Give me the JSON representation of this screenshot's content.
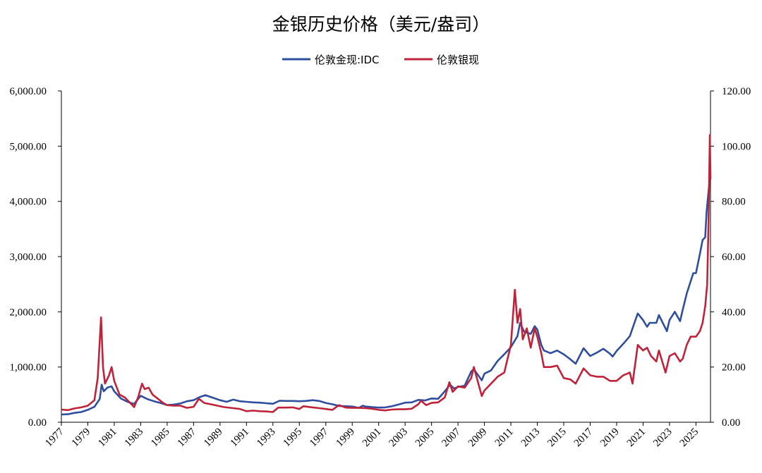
{
  "chart_data": {
    "type": "line",
    "title": "金银历史价格（美元/盎司）",
    "legend_placement": "top-center",
    "grid": false,
    "x_range": [
      1977,
      2026.1
    ],
    "x_ticks": [
      "1977",
      "1979",
      "1981",
      "1983",
      "1985",
      "1987",
      "1989",
      "1991",
      "1993",
      "1995",
      "1997",
      "1999",
      "2001",
      "2003",
      "2005",
      "2007",
      "2009",
      "2011",
      "2013",
      "2015",
      "2017",
      "2019",
      "2021",
      "2023",
      "2025"
    ],
    "y_left": {
      "range": [
        0,
        6000
      ],
      "ticks": [
        "0.00",
        "1,000.00",
        "2,000.00",
        "3,000.00",
        "4,000.00",
        "5,000.00",
        "6,000.00"
      ]
    },
    "y_right": {
      "range": [
        0,
        120
      ],
      "ticks": [
        "0.00",
        "20.00",
        "40.00",
        "60.00",
        "80.00",
        "100.00",
        "120.00"
      ]
    },
    "series": [
      {
        "name": "伦敦金现:IDC",
        "axis": "left",
        "color": "#2f4e9e",
        "points": [
          [
            1977.0,
            140
          ],
          [
            1977.5,
            145
          ],
          [
            1978.0,
            170
          ],
          [
            1978.5,
            185
          ],
          [
            1979.0,
            225
          ],
          [
            1979.5,
            280
          ],
          [
            1979.9,
            420
          ],
          [
            1980.05,
            680
          ],
          [
            1980.2,
            560
          ],
          [
            1980.5,
            630
          ],
          [
            1980.8,
            650
          ],
          [
            1981.0,
            560
          ],
          [
            1981.5,
            430
          ],
          [
            1982.0,
            370
          ],
          [
            1982.5,
            330
          ],
          [
            1983.0,
            480
          ],
          [
            1983.5,
            420
          ],
          [
            1984.0,
            380
          ],
          [
            1984.5,
            350
          ],
          [
            1985.0,
            310
          ],
          [
            1985.5,
            320
          ],
          [
            1986.0,
            340
          ],
          [
            1986.5,
            380
          ],
          [
            1987.0,
            400
          ],
          [
            1987.5,
            460
          ],
          [
            1987.9,
            490
          ],
          [
            1988.5,
            440
          ],
          [
            1989.0,
            400
          ],
          [
            1989.5,
            370
          ],
          [
            1990.0,
            410
          ],
          [
            1990.5,
            380
          ],
          [
            1991.0,
            370
          ],
          [
            1991.5,
            360
          ],
          [
            1992.0,
            355
          ],
          [
            1992.5,
            345
          ],
          [
            1993.0,
            335
          ],
          [
            1993.5,
            390
          ],
          [
            1994.0,
            385
          ],
          [
            1994.5,
            385
          ],
          [
            1995.0,
            380
          ],
          [
            1995.5,
            385
          ],
          [
            1996.0,
            400
          ],
          [
            1996.5,
            385
          ],
          [
            1997.0,
            350
          ],
          [
            1997.5,
            325
          ],
          [
            1998.0,
            295
          ],
          [
            1998.5,
            290
          ],
          [
            1999.0,
            285
          ],
          [
            1999.5,
            260
          ],
          [
            1999.8,
            300
          ],
          [
            2000.0,
            285
          ],
          [
            2000.5,
            275
          ],
          [
            2001.0,
            265
          ],
          [
            2001.5,
            270
          ],
          [
            2002.0,
            290
          ],
          [
            2002.5,
            320
          ],
          [
            2003.0,
            355
          ],
          [
            2003.5,
            360
          ],
          [
            2004.0,
            405
          ],
          [
            2004.5,
            395
          ],
          [
            2005.0,
            430
          ],
          [
            2005.5,
            425
          ],
          [
            2006.0,
            560
          ],
          [
            2006.4,
            680
          ],
          [
            2006.7,
            610
          ],
          [
            2007.0,
            640
          ],
          [
            2007.5,
            660
          ],
          [
            2008.0,
            920
          ],
          [
            2008.2,
            960
          ],
          [
            2008.8,
            760
          ],
          [
            2009.0,
            880
          ],
          [
            2009.5,
            940
          ],
          [
            2010.0,
            1110
          ],
          [
            2010.5,
            1230
          ],
          [
            2011.0,
            1360
          ],
          [
            2011.5,
            1560
          ],
          [
            2011.7,
            1800
          ],
          [
            2012.0,
            1640
          ],
          [
            2012.5,
            1600
          ],
          [
            2012.8,
            1740
          ],
          [
            2013.0,
            1680
          ],
          [
            2013.3,
            1400
          ],
          [
            2013.5,
            1300
          ],
          [
            2014.0,
            1250
          ],
          [
            2014.5,
            1300
          ],
          [
            2015.0,
            1230
          ],
          [
            2015.5,
            1140
          ],
          [
            2015.9,
            1060
          ],
          [
            2016.5,
            1340
          ],
          [
            2017.0,
            1200
          ],
          [
            2017.5,
            1260
          ],
          [
            2018.0,
            1330
          ],
          [
            2018.5,
            1240
          ],
          [
            2018.7,
            1190
          ],
          [
            2019.0,
            1290
          ],
          [
            2019.5,
            1420
          ],
          [
            2020.0,
            1560
          ],
          [
            2020.2,
            1700
          ],
          [
            2020.6,
            1970
          ],
          [
            2021.0,
            1850
          ],
          [
            2021.3,
            1730
          ],
          [
            2021.5,
            1800
          ],
          [
            2022.0,
            1800
          ],
          [
            2022.2,
            1940
          ],
          [
            2022.8,
            1650
          ],
          [
            2023.0,
            1850
          ],
          [
            2023.4,
            2000
          ],
          [
            2023.8,
            1830
          ],
          [
            2024.0,
            2040
          ],
          [
            2024.3,
            2330
          ],
          [
            2024.8,
            2700
          ],
          [
            2025.0,
            2700
          ],
          [
            2025.3,
            3050
          ],
          [
            2025.5,
            3300
          ],
          [
            2025.7,
            3350
          ],
          [
            2025.8,
            3800
          ],
          [
            2026.0,
            4300
          ]
        ]
      },
      {
        "name": "伦敦银现",
        "axis": "right",
        "color": "#c0223a",
        "points": [
          [
            1977.0,
            4.6
          ],
          [
            1977.5,
            4.4
          ],
          [
            1978.0,
            5.0
          ],
          [
            1978.5,
            5.4
          ],
          [
            1979.0,
            6.0
          ],
          [
            1979.5,
            8.0
          ],
          [
            1979.75,
            16.0
          ],
          [
            1980.0,
            38.0
          ],
          [
            1980.15,
            20.0
          ],
          [
            1980.3,
            14.0
          ],
          [
            1980.6,
            17.0
          ],
          [
            1980.8,
            20.0
          ],
          [
            1981.0,
            15.0
          ],
          [
            1981.4,
            10.0
          ],
          [
            1981.8,
            9.0
          ],
          [
            1982.3,
            6.5
          ],
          [
            1982.5,
            5.5
          ],
          [
            1982.8,
            9.0
          ],
          [
            1983.1,
            14.0
          ],
          [
            1983.3,
            12.0
          ],
          [
            1983.6,
            12.5
          ],
          [
            1983.9,
            10.0
          ],
          [
            1984.3,
            8.5
          ],
          [
            1984.7,
            7.0
          ],
          [
            1985.0,
            6.2
          ],
          [
            1985.5,
            6.0
          ],
          [
            1986.0,
            6.0
          ],
          [
            1986.5,
            5.2
          ],
          [
            1987.0,
            5.6
          ],
          [
            1987.4,
            8.5
          ],
          [
            1987.8,
            7.0
          ],
          [
            1988.3,
            6.5
          ],
          [
            1988.8,
            6.0
          ],
          [
            1989.3,
            5.5
          ],
          [
            1990.0,
            5.1
          ],
          [
            1990.5,
            4.8
          ],
          [
            1991.0,
            4.0
          ],
          [
            1991.5,
            4.2
          ],
          [
            1992.0,
            4.0
          ],
          [
            1992.5,
            3.9
          ],
          [
            1993.0,
            3.7
          ],
          [
            1993.4,
            5.3
          ],
          [
            1994.0,
            5.3
          ],
          [
            1994.5,
            5.4
          ],
          [
            1995.0,
            4.8
          ],
          [
            1995.3,
            5.8
          ],
          [
            1996.0,
            5.4
          ],
          [
            1996.5,
            5.1
          ],
          [
            1997.0,
            4.8
          ],
          [
            1997.5,
            4.5
          ],
          [
            1998.0,
            6.2
          ],
          [
            1998.5,
            5.3
          ],
          [
            1999.0,
            5.2
          ],
          [
            1999.5,
            5.2
          ],
          [
            2000.0,
            5.1
          ],
          [
            2000.5,
            4.9
          ],
          [
            2001.0,
            4.5
          ],
          [
            2001.5,
            4.3
          ],
          [
            2002.0,
            4.6
          ],
          [
            2002.5,
            4.7
          ],
          [
            2003.0,
            4.7
          ],
          [
            2003.5,
            4.9
          ],
          [
            2004.0,
            6.5
          ],
          [
            2004.2,
            7.8
          ],
          [
            2004.6,
            6.2
          ],
          [
            2005.0,
            7.0
          ],
          [
            2005.5,
            7.2
          ],
          [
            2006.0,
            9.0
          ],
          [
            2006.35,
            14.5
          ],
          [
            2006.6,
            11.0
          ],
          [
            2007.0,
            13.0
          ],
          [
            2007.5,
            12.5
          ],
          [
            2008.0,
            16.0
          ],
          [
            2008.2,
            20.0
          ],
          [
            2008.8,
            9.5
          ],
          [
            2009.0,
            11.5
          ],
          [
            2009.5,
            14.0
          ],
          [
            2010.0,
            16.5
          ],
          [
            2010.5,
            18.0
          ],
          [
            2011.0,
            28.0
          ],
          [
            2011.3,
            48.0
          ],
          [
            2011.5,
            36.0
          ],
          [
            2011.7,
            41.0
          ],
          [
            2011.9,
            30.0
          ],
          [
            2012.2,
            34.0
          ],
          [
            2012.5,
            27.0
          ],
          [
            2012.8,
            34.0
          ],
          [
            2013.0,
            31.0
          ],
          [
            2013.3,
            25.0
          ],
          [
            2013.5,
            20.0
          ],
          [
            2014.0,
            20.0
          ],
          [
            2014.5,
            20.5
          ],
          [
            2015.0,
            16.0
          ],
          [
            2015.5,
            15.5
          ],
          [
            2015.9,
            14.0
          ],
          [
            2016.5,
            19.5
          ],
          [
            2017.0,
            17.0
          ],
          [
            2017.5,
            16.5
          ],
          [
            2018.0,
            16.5
          ],
          [
            2018.5,
            15.0
          ],
          [
            2019.0,
            15.0
          ],
          [
            2019.5,
            17.0
          ],
          [
            2020.0,
            18.0
          ],
          [
            2020.2,
            14.0
          ],
          [
            2020.6,
            28.0
          ],
          [
            2021.0,
            26.0
          ],
          [
            2021.3,
            27.0
          ],
          [
            2021.6,
            24.0
          ],
          [
            2022.0,
            22.0
          ],
          [
            2022.2,
            26.0
          ],
          [
            2022.7,
            18.0
          ],
          [
            2023.0,
            24.0
          ],
          [
            2023.4,
            25.0
          ],
          [
            2023.8,
            22.0
          ],
          [
            2024.0,
            23.0
          ],
          [
            2024.3,
            28.0
          ],
          [
            2024.6,
            31.0
          ],
          [
            2025.0,
            31.0
          ],
          [
            2025.3,
            33.0
          ],
          [
            2025.5,
            36.0
          ],
          [
            2025.7,
            42.0
          ],
          [
            2025.85,
            50.0
          ],
          [
            2025.95,
            72.0
          ],
          [
            2026.05,
            104.0
          ],
          [
            2026.1,
            88.0
          ]
        ]
      }
    ]
  }
}
